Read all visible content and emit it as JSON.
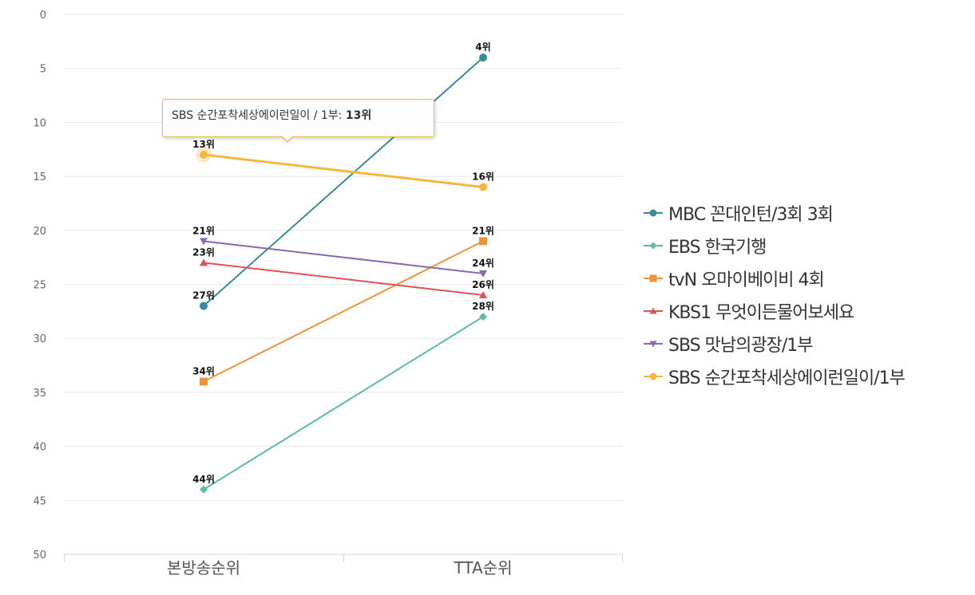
{
  "chart_data": {
    "type": "line",
    "categories": [
      "본방송순위",
      "TTA순위"
    ],
    "ylim": [
      0,
      50
    ],
    "y_reversed": true,
    "yticks": [
      0,
      5,
      10,
      15,
      20,
      25,
      30,
      35,
      40,
      45,
      50
    ],
    "grid": true,
    "legend_position": "right",
    "label_suffix": "위",
    "series": [
      {
        "name": "MBC 꼰대인턴/3회 3회",
        "values": [
          27,
          4
        ],
        "color": "#3a8b99",
        "marker": "circle"
      },
      {
        "name": "EBS 한국기행",
        "values": [
          44,
          28
        ],
        "color": "#5cbf95",
        "marker": "diamond"
      },
      {
        "name": "tvN 오마이베이비 4회",
        "values": [
          34,
          21
        ],
        "color": "#f0923a",
        "marker": "square"
      },
      {
        "name": "KBS1 무엇이든물어보세요",
        "values": [
          23,
          26
        ],
        "color": "#e05252",
        "marker": "triangle-up"
      },
      {
        "name": "SBS 맛남의광장/1부",
        "values": [
          21,
          24
        ],
        "color": "#8a68b0",
        "marker": "triangle-down"
      },
      {
        "name": "SBS 순간포착세상에이런일이/1부",
        "values": [
          13,
          16
        ],
        "color": "#f5b83d",
        "marker": "circle"
      }
    ],
    "tooltip": {
      "series_name": "SBS 순간포착세상에이런일이 / 1부",
      "separator": ":",
      "value_label": "13위"
    }
  }
}
